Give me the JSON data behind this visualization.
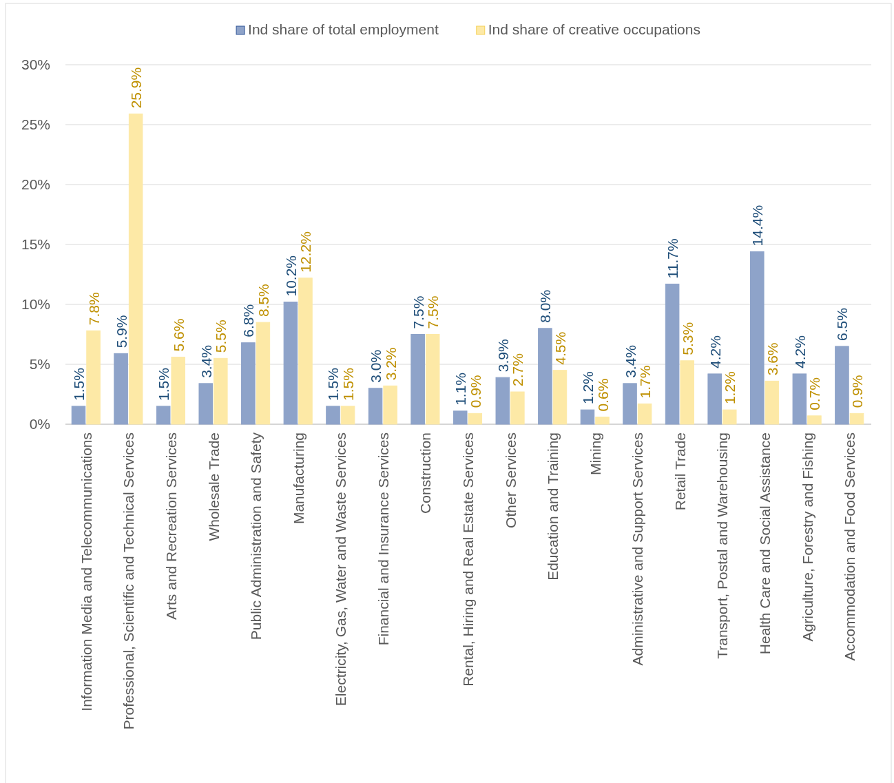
{
  "chart_data": {
    "type": "bar",
    "categories": [
      "Information Media and Telecommunications",
      "Professional, Scientific and Technical Services",
      "Arts and Recreation Services",
      "Wholesale Trade",
      "Public Administration and Safety",
      "Manufacturing",
      "Electricity, Gas, Water and Waste Services",
      "Financial and Insurance Services",
      "Construction",
      "Rental, Hiring and Real Estate Services",
      "Other Services",
      "Education and Training",
      "Mining",
      "Administrative and Support Services",
      "Retail Trade",
      "Transport, Postal and Warehousing",
      "Health Care and Social Assistance",
      "Agriculture, Forestry and Fishing",
      "Accommodation and Food Services"
    ],
    "series": [
      {
        "name": "Ind share of total employment",
        "color": "#8ea3c9",
        "values": [
          1.5,
          5.9,
          1.5,
          3.4,
          6.8,
          10.2,
          1.5,
          3.0,
          7.5,
          1.1,
          3.9,
          8.0,
          1.2,
          3.4,
          11.7,
          4.2,
          14.4,
          4.2,
          6.5
        ],
        "value_labels": [
          "1.5%",
          "5.9%",
          "1.5%",
          "3.4%",
          "6.8%",
          "10.2%",
          "1.5%",
          "3.0%",
          "7.5%",
          "1.1%",
          "3.9%",
          "8.0%",
          "1.2%",
          "3.4%",
          "11.7%",
          "4.2%",
          "14.4%",
          "4.2%",
          "6.5%"
        ]
      },
      {
        "name": "Ind share of creative occupations",
        "color": "#fde9a6",
        "values": [
          7.8,
          25.9,
          5.6,
          5.5,
          8.5,
          12.2,
          1.5,
          3.2,
          7.5,
          0.9,
          2.7,
          4.5,
          0.6,
          1.7,
          5.3,
          1.2,
          3.6,
          0.7,
          0.9
        ],
        "value_labels": [
          "7.8%",
          "25.9%",
          "5.6%",
          "5.5%",
          "8.5%",
          "12.2%",
          "1.5%",
          "3.2%",
          "7.5%",
          "0.9%",
          "2.7%",
          "4.5%",
          "0.6%",
          "1.7%",
          "5.3%",
          "1.2%",
          "3.6%",
          "0.7%",
          "0.9%"
        ]
      }
    ],
    "ylim": [
      0,
      30
    ],
    "yticks": [
      {
        "value": 0,
        "label": "0%"
      },
      {
        "value": 5,
        "label": "5%"
      },
      {
        "value": 10,
        "label": "10%"
      },
      {
        "value": 15,
        "label": "15%"
      },
      {
        "value": 20,
        "label": "20%"
      },
      {
        "value": 25,
        "label": "25%"
      },
      {
        "value": 30,
        "label": "30%"
      }
    ],
    "grid": "y",
    "legend": "top"
  }
}
